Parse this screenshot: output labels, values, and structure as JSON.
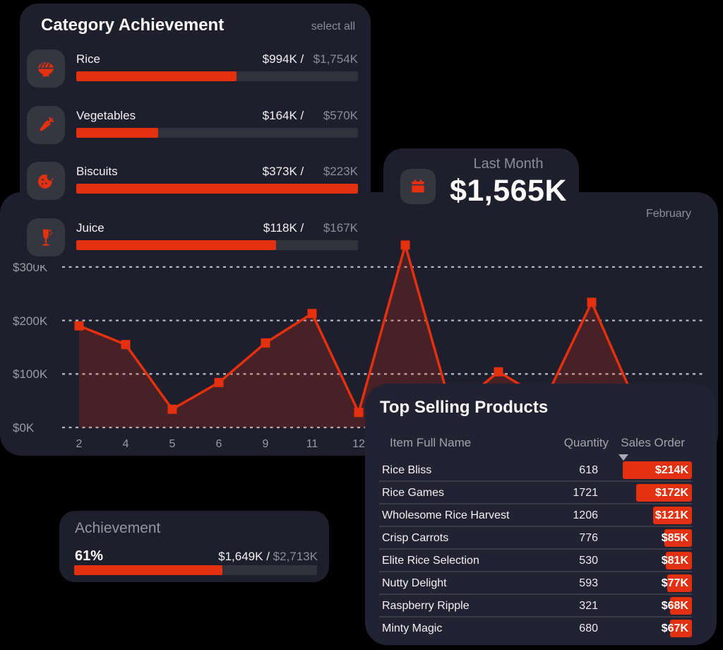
{
  "colors": {
    "accent": "#e3300f",
    "panel": "#1e1e2c",
    "panel_alt": "#232233",
    "icon_bg": "#363641",
    "track": "#31323c",
    "grid": "#d2d2d8",
    "area_fill_opacity": 0.21
  },
  "category_achievement": {
    "title": "Category Achievement",
    "action_label": "select all",
    "items": [
      {
        "icon": "rice-bowl-icon",
        "name": "Rice",
        "current": "$994K /",
        "target": "$1,754K",
        "percent": 57
      },
      {
        "icon": "carrot-icon",
        "name": "Vegetables",
        "current": "$164K /",
        "target": "$570K",
        "percent": 29
      },
      {
        "icon": "cookie-icon",
        "name": "Biscuits",
        "current": "$373K /",
        "target": "$223K",
        "percent": 100
      },
      {
        "icon": "juice-icon",
        "name": "Juice",
        "current": "$118K /",
        "target": "$167K",
        "percent": 71
      }
    ]
  },
  "last_month": {
    "icon": "calendar-icon",
    "label": "Last Month",
    "value": "$1,565K"
  },
  "chart_data": {
    "type": "area",
    "unit": "$K",
    "month_label": "February",
    "x_labels": [
      "2",
      "4",
      "5",
      "6",
      "9",
      "11",
      "12",
      "",
      "",
      "",
      "",
      "",
      ""
    ],
    "values": [
      190,
      155,
      34,
      84,
      158,
      213,
      28,
      341,
      32,
      104,
      52,
      234,
      35
    ],
    "y_ticks": [
      {
        "label": "$0K",
        "value": 0
      },
      {
        "label": "$100K",
        "value": 100
      },
      {
        "label": "$200K",
        "value": 200
      },
      {
        "label": "$300K",
        "value": 300
      }
    ],
    "ylim": [
      0,
      350
    ],
    "grid": "dashed-horizontal",
    "legend": "none"
  },
  "top_selling": {
    "title": "Top Selling Products",
    "columns": [
      "Item Full Name",
      "Quantity",
      "Sales Order"
    ],
    "sorted_by": "Sales Order",
    "rows": [
      {
        "item": "Rice Bliss",
        "quantity": "618",
        "sales": "$214K",
        "sales_value": 214
      },
      {
        "item": "Rice Games",
        "quantity": "1721",
        "sales": "$172K",
        "sales_value": 172
      },
      {
        "item": "Wholesome Rice Harvest",
        "quantity": "1206",
        "sales": "$121K",
        "sales_value": 121
      },
      {
        "item": "Crisp Carrots",
        "quantity": "776",
        "sales": "$85K",
        "sales_value": 85
      },
      {
        "item": "Elite Rice Selection",
        "quantity": "530",
        "sales": "$81K",
        "sales_value": 81
      },
      {
        "item": "Nutty Delight",
        "quantity": "593",
        "sales": "$77K",
        "sales_value": 77
      },
      {
        "item": "Raspberry Ripple",
        "quantity": "321",
        "sales": "$68K",
        "sales_value": 68
      },
      {
        "item": "Minty Magic",
        "quantity": "680",
        "sales": "$67K",
        "sales_value": 67
      }
    ]
  },
  "achievement": {
    "title": "Achievement",
    "percent_label": "61%",
    "percent": 61,
    "current": "$1,649K /",
    "target": "$2,713K"
  }
}
